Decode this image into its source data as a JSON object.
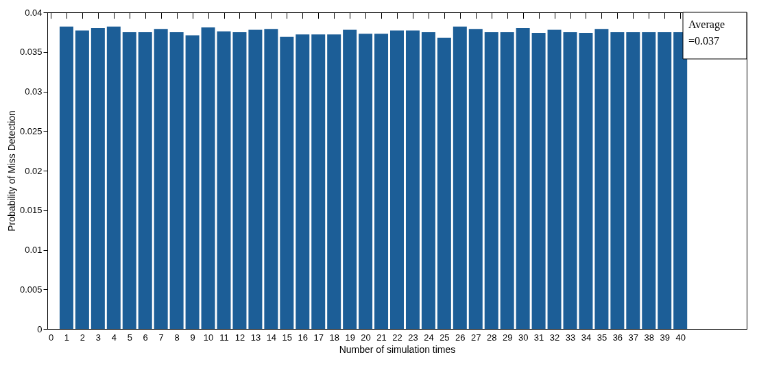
{
  "chart_data": {
    "type": "bar",
    "xlabel": "Number of simulation times",
    "ylabel": "Probability of Miss Detection",
    "x": [
      1,
      2,
      3,
      4,
      5,
      6,
      7,
      8,
      9,
      10,
      11,
      12,
      13,
      14,
      15,
      16,
      17,
      18,
      19,
      20,
      21,
      22,
      23,
      24,
      25,
      26,
      27,
      28,
      29,
      30,
      31,
      32,
      33,
      34,
      35,
      36,
      37,
      38,
      39,
      40
    ],
    "values": [
      0.0382,
      0.0377,
      0.038,
      0.0382,
      0.0375,
      0.0375,
      0.0379,
      0.0375,
      0.0371,
      0.0381,
      0.0376,
      0.0375,
      0.0378,
      0.0379,
      0.0369,
      0.0372,
      0.0372,
      0.0372,
      0.0378,
      0.0373,
      0.0373,
      0.0377,
      0.0377,
      0.0375,
      0.0368,
      0.0382,
      0.0379,
      0.0375,
      0.0375,
      0.038,
      0.0374,
      0.0378,
      0.0375,
      0.0374,
      0.0379,
      0.0375,
      0.0375,
      0.0375,
      0.0375,
      0.0375
    ],
    "color": "#1c5e97",
    "xlim": [
      0,
      44
    ],
    "xticks": [
      0,
      1,
      2,
      3,
      4,
      5,
      6,
      7,
      8,
      9,
      10,
      11,
      12,
      13,
      14,
      15,
      16,
      17,
      18,
      19,
      20,
      21,
      22,
      23,
      24,
      25,
      26,
      27,
      28,
      29,
      30,
      31,
      32,
      33,
      34,
      35,
      36,
      37,
      38,
      39,
      40
    ],
    "ylim": [
      0,
      0.04
    ],
    "yticks": [
      0,
      0.005,
      0.01,
      0.015,
      0.02,
      0.025,
      0.03,
      0.035,
      0.04
    ],
    "grid": false,
    "annotations": [
      "Average\n=0.037"
    ]
  }
}
